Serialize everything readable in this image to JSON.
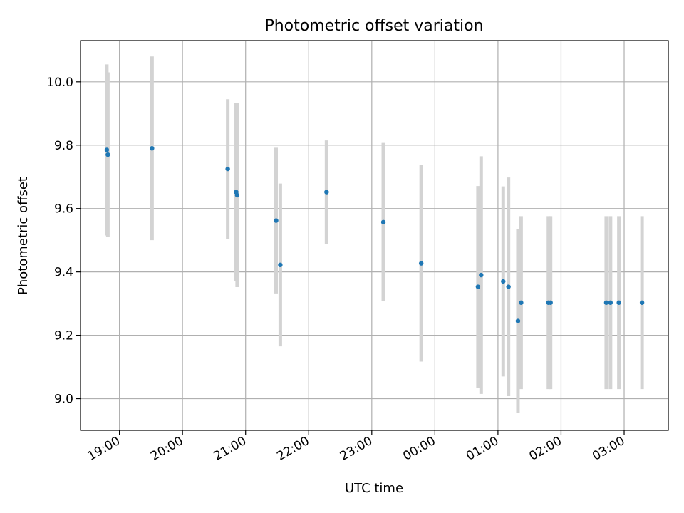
{
  "chart_data": {
    "type": "scatter",
    "title": "Photometric offset variation",
    "xlabel": "UTC time",
    "ylabel": "Photometric offset",
    "x_axis_type": "time",
    "x_ticks": [
      "19:00",
      "20:00",
      "21:00",
      "22:00",
      "23:00",
      "00:00",
      "01:00",
      "02:00",
      "03:00"
    ],
    "y_ticks": [
      "9.0",
      "9.2",
      "9.4",
      "9.6",
      "9.8",
      "10.0"
    ],
    "xlim": [
      "18:23",
      "03:42"
    ],
    "ylim": [
      8.9,
      10.13
    ],
    "grid": true,
    "marker_color": "#1f77b4",
    "errorbar_color": "#d3d3d3",
    "points": [
      {
        "time": "18:48",
        "y": 9.785,
        "err": 0.27
      },
      {
        "time": "18:49",
        "y": 9.77,
        "err": 0.26
      },
      {
        "time": "19:31",
        "y": 9.79,
        "err": 0.29
      },
      {
        "time": "20:43",
        "y": 9.725,
        "err": 0.22
      },
      {
        "time": "20:51",
        "y": 9.652,
        "err": 0.28
      },
      {
        "time": "20:52",
        "y": 9.642,
        "err": 0.29
      },
      {
        "time": "21:29",
        "y": 9.562,
        "err": 0.23
      },
      {
        "time": "21:33",
        "y": 9.422,
        "err": 0.257
      },
      {
        "time": "22:17",
        "y": 9.652,
        "err": 0.163
      },
      {
        "time": "23:11",
        "y": 9.557,
        "err": 0.25
      },
      {
        "time": "23:47",
        "y": 9.427,
        "err": 0.31
      },
      {
        "time": "00:41",
        "y": 9.353,
        "err": 0.318
      },
      {
        "time": "00:44",
        "y": 9.39,
        "err": 0.375
      },
      {
        "time": "01:05",
        "y": 9.37,
        "err": 0.3
      },
      {
        "time": "01:10",
        "y": 9.353,
        "err": 0.345
      },
      {
        "time": "01:19",
        "y": 9.245,
        "err": 0.29
      },
      {
        "time": "01:22",
        "y": 9.303,
        "err": 0.273
      },
      {
        "time": "01:48",
        "y": 9.303,
        "err": 0.273
      },
      {
        "time": "01:50",
        "y": 9.303,
        "err": 0.273
      },
      {
        "time": "02:43",
        "y": 9.303,
        "err": 0.273
      },
      {
        "time": "02:47",
        "y": 9.303,
        "err": 0.273
      },
      {
        "time": "02:55",
        "y": 9.303,
        "err": 0.273
      },
      {
        "time": "03:17",
        "y": 9.303,
        "err": 0.273
      }
    ]
  }
}
